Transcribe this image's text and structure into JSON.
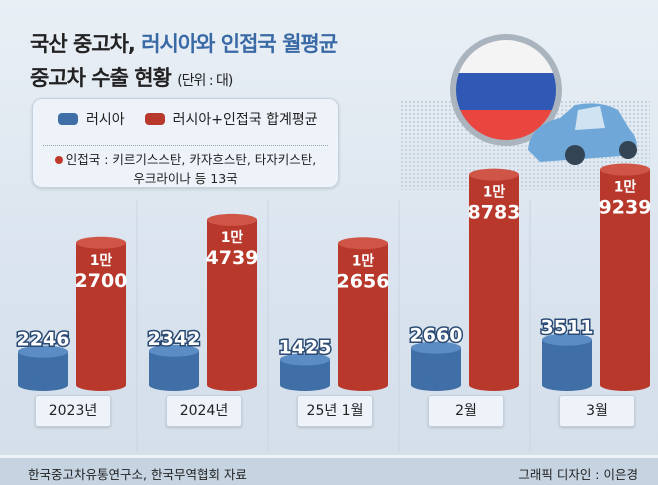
{
  "title_line1_a": "국산 중고차,",
  "title_line1_b": "러시아와 인접국 월평균",
  "title_line2": "중고차 수출 현황",
  "unit": "(단위 : 대)",
  "legend": {
    "russia": "러시아",
    "total": "러시아+인접국 합계평균"
  },
  "note_line1": "인접국 : 키르기스스탄, 카자흐스탄, 타자키스탄,",
  "note_line2": "우크라이나 등 13국",
  "source": "한국중고차유통연구소, 한국무역협회 자료",
  "credit": "그래픽 디자인 : 이은경",
  "colors": {
    "russia": "#3f6fa6",
    "total": "#b8382c"
  },
  "chart_data": {
    "type": "bar",
    "categories": [
      "2023년",
      "2024년",
      "25년 1월",
      "2월",
      "3월"
    ],
    "series": [
      {
        "name": "러시아",
        "values": [
          2246,
          2342,
          1425,
          2660,
          3511
        ]
      },
      {
        "name": "러시아+인접국 합계평균",
        "values": [
          12700,
          14739,
          12656,
          18783,
          19239
        ]
      }
    ],
    "total_labels": [
      [
        "1만",
        "2700"
      ],
      [
        "1만",
        "4739"
      ],
      [
        "1만",
        "2656"
      ],
      [
        "1만",
        "8783"
      ],
      [
        "1만",
        "9239"
      ]
    ],
    "russia_labels": [
      "2246",
      "2342",
      "1425",
      "2660",
      "3511"
    ]
  }
}
